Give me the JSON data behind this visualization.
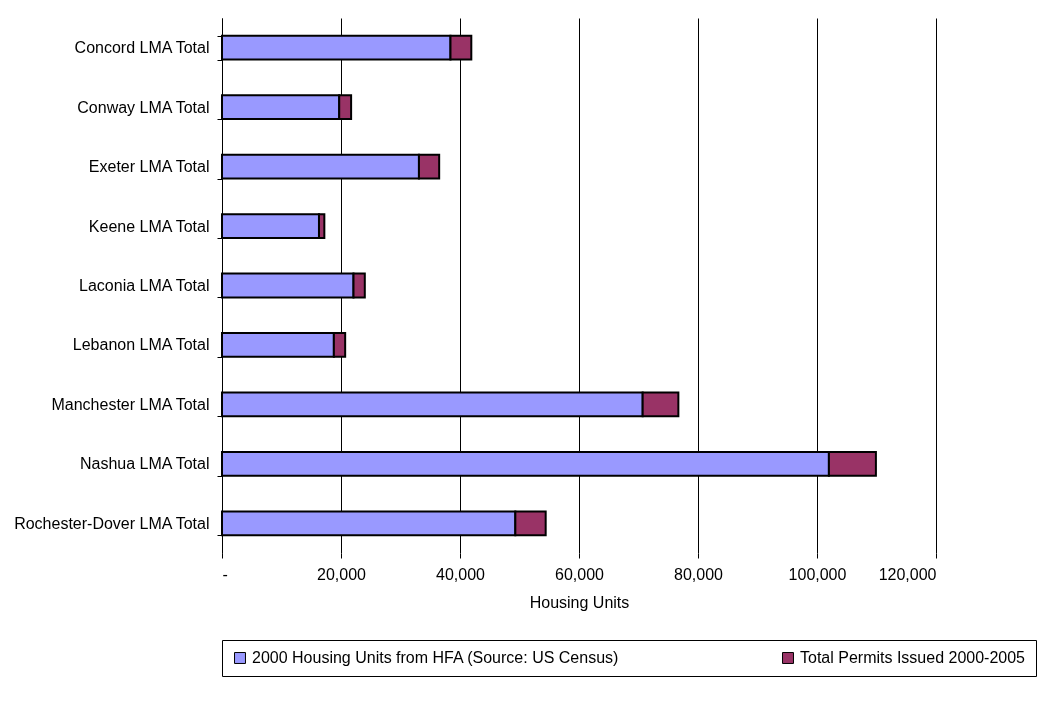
{
  "chart_data": {
    "type": "bar",
    "orientation": "horizontal",
    "stacked": true,
    "categories": [
      "Concord LMA Total",
      "Conway LMA Total",
      "Exeter LMA Total",
      "Keene LMA Total",
      "Laconia LMA Total",
      "Lebanon  LMA Total",
      "Manchester  LMA Total",
      "Nashua  LMA Total",
      "Rochester-Dover  LMA Total"
    ],
    "series": [
      {
        "name": "2000 Housing Units from HFA (Source: US Census)",
        "color": "#9999ff",
        "values": [
          38400,
          19700,
          33100,
          16300,
          22100,
          18800,
          70700,
          102000,
          49300
        ]
      },
      {
        "name": "Total Permits Issued 2000-2005",
        "color": "#993366",
        "values": [
          3500,
          2000,
          3400,
          900,
          1900,
          1900,
          6000,
          7900,
          5100
        ]
      }
    ],
    "xlabel": "Housing Units",
    "xlim": [
      0,
      120000
    ],
    "xticks": [
      {
        "value": 0,
        "label": "-"
      },
      {
        "value": 20000,
        "label": "20,000"
      },
      {
        "value": 40000,
        "label": "40,000"
      },
      {
        "value": 60000,
        "label": "60,000"
      },
      {
        "value": 80000,
        "label": "80,000"
      },
      {
        "value": 100000,
        "label": "100,000"
      },
      {
        "value": 120000,
        "label": "120,000"
      }
    ],
    "grid": "x",
    "legend": "bottom"
  }
}
